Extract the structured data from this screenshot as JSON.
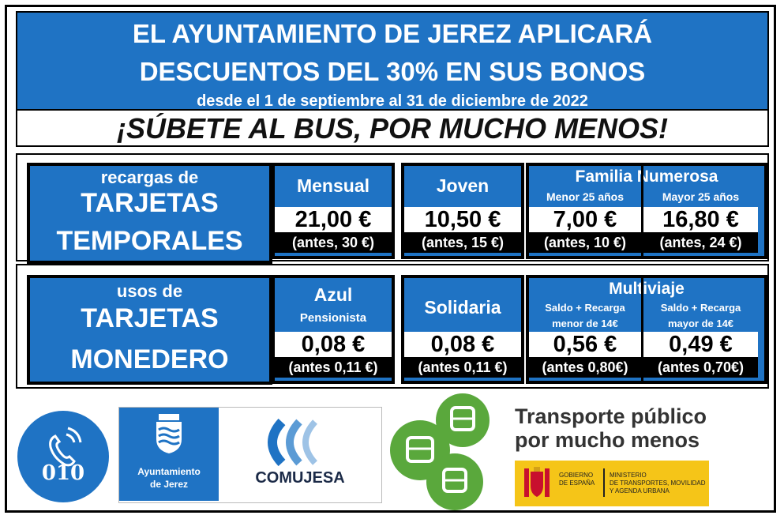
{
  "header": {
    "line1": "EL AYUNTAMIENTO DE JEREZ APLICARÁ",
    "line2": "DESCUENTOS DEL 30% EN SUS BONOS",
    "dates": "desde el 1 de septiembre al 31 de diciembre de 2022",
    "slogan": "¡SÚBETE AL BUS, POR MUCHO MENOS!"
  },
  "temporales": {
    "small": "recargas de",
    "big1": "TARJETAS",
    "big2": "TEMPORALES",
    "mensual": {
      "title": "Mensual",
      "price": "21,00 €",
      "before": "(antes, 30 €)"
    },
    "joven": {
      "title": "Joven",
      "price": "10,50 €",
      "before": "(antes, 15 €)"
    },
    "familia": {
      "title": "Familia Numerosa",
      "menor": {
        "label": "Menor 25 años",
        "price": "7,00 €",
        "before": "(antes, 10 €)"
      },
      "mayor": {
        "label": "Mayor 25 años",
        "price": "16,80 €",
        "before": "(antes, 24 €)"
      }
    }
  },
  "monedero": {
    "small": "usos de",
    "big1": "TARJETAS",
    "big2": "MONEDERO",
    "azul": {
      "title": "Azul",
      "sub": "Pensionista",
      "price": "0,08 €",
      "before": "(antes 0,11 €)"
    },
    "solidaria": {
      "title": "Solidaria",
      "price": "0,08 €",
      "before": "(antes 0,11 €)"
    },
    "multiviaje": {
      "title": "Multiviaje",
      "menor": {
        "label1": "Saldo + Recarga",
        "label2": "menor de 14€",
        "price": "0,56 €",
        "before": "(antes 0,80€)"
      },
      "mayor": {
        "label1": "Saldo + Recarga",
        "label2": "mayor de 14€",
        "price": "0,49 €",
        "before": "(antes 0,70€)"
      }
    }
  },
  "footer": {
    "phone": "010",
    "ayto1": "Ayuntamiento",
    "ayto2": "de Jerez",
    "comujesa": "COMUJESA",
    "transporte1": "Transporte público",
    "transporte2": "por mucho menos",
    "gobierno1": "GOBIERNO",
    "gobierno2": "DE ESPAÑA",
    "ministerio1": "MINISTERIO",
    "ministerio2": "DE TRANSPORTES, MOVILIDAD",
    "ministerio3": "Y AGENDA URBANA",
    "colors": {
      "blue": "#1f73c4",
      "green": "#5aa83c",
      "gov_yellow": "#f5c518"
    }
  }
}
